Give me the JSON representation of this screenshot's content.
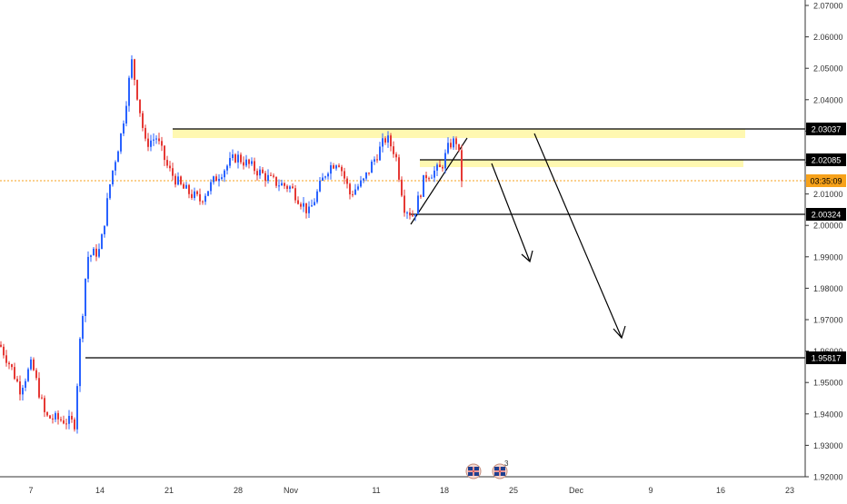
{
  "chart_data": {
    "type": "candlestick",
    "instrument_note": "",
    "ylim": [
      1.92,
      2.07
    ],
    "x_tick_labels": [
      "7",
      "14",
      "21",
      "28",
      "Nov",
      "11",
      "18",
      "25",
      "Dec",
      "9",
      "16",
      "23"
    ],
    "y_tick_labels": [
      "2.07000",
      "2.06000",
      "2.05000",
      "2.04000",
      "2.03000",
      "2.02000",
      "2.01000",
      "2.00000",
      "1.99000",
      "1.98000",
      "1.97000",
      "1.96000",
      "1.95000",
      "1.94000",
      "1.93000",
      "1.92000"
    ],
    "y_ticks": [
      2.07,
      2.06,
      2.05,
      2.04,
      2.03,
      2.02,
      2.01,
      2.0,
      1.99,
      1.98,
      1.97,
      1.96,
      1.95,
      1.94,
      1.93,
      1.92
    ],
    "price_levels": [
      {
        "label": "2.03037",
        "value": 2.03037,
        "color": "#000000"
      },
      {
        "label": "2.02085",
        "value": 2.02085,
        "color": "#000000"
      },
      {
        "label": "2.00324",
        "value": 2.00324,
        "color": "#000000"
      },
      {
        "label": "1.95817",
        "value": 1.95817,
        "color": "#000000"
      }
    ],
    "current_price": {
      "value": 2.01,
      "countdown": "03:35:09",
      "color": "#f7a21b"
    },
    "zones": [
      {
        "from": 2.0285,
        "to": 2.0305,
        "color": "#fff59d"
      },
      {
        "from": 2.017,
        "to": 2.0195,
        "color": "#fff59d"
      }
    ],
    "bull_color": "#2962ff",
    "bear_color": "#e53935",
    "event_markers": [
      {
        "icon": "uk-flag-icon",
        "count": ""
      },
      {
        "icon": "uk-flag-icon",
        "count": "3"
      }
    ]
  }
}
